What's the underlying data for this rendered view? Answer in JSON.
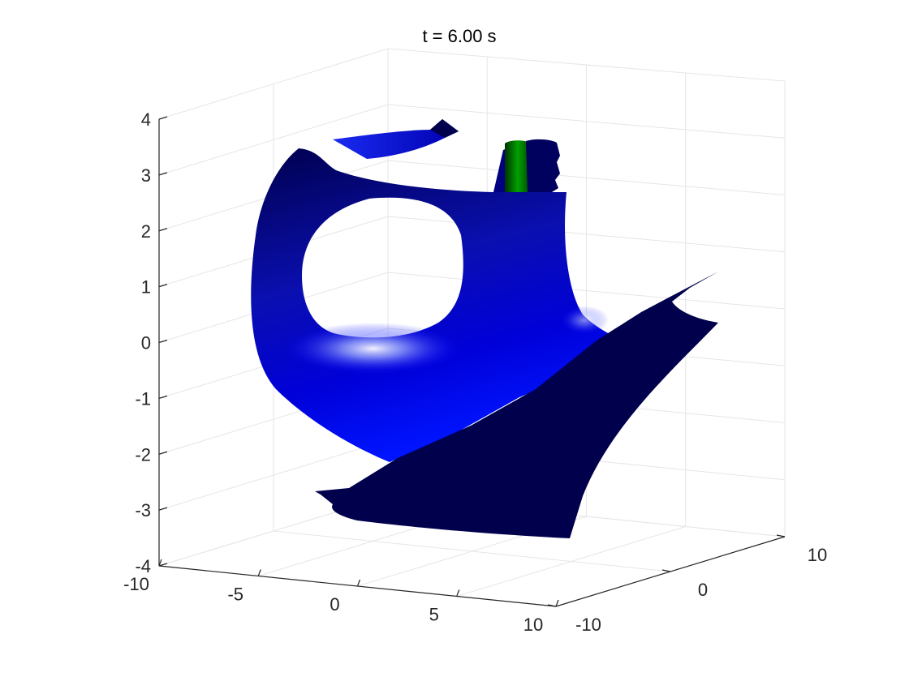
{
  "chart_data": {
    "type": "surface3d",
    "title": "t = 6.00 s",
    "xlabel": "",
    "ylabel": "",
    "zlabel": "",
    "x_ticks": [
      "-10",
      "-5",
      "0",
      "5",
      "10"
    ],
    "y_ticks": [
      "-10",
      "0",
      "10"
    ],
    "z_ticks": [
      "-4",
      "-3",
      "-2",
      "-1",
      "0",
      "1",
      "2",
      "3",
      "4"
    ],
    "xlim": [
      -10,
      10
    ],
    "ylim": [
      -10,
      10
    ],
    "zlim": [
      -4,
      4
    ],
    "grid": true,
    "surfaces": [
      {
        "name": "",
        "color": "#0000cc",
        "shade_dark": "#00004d",
        "highlight": "#ffffff"
      },
      {
        "name": "",
        "color": "#008000",
        "shade_dark": "#003300"
      }
    ]
  }
}
